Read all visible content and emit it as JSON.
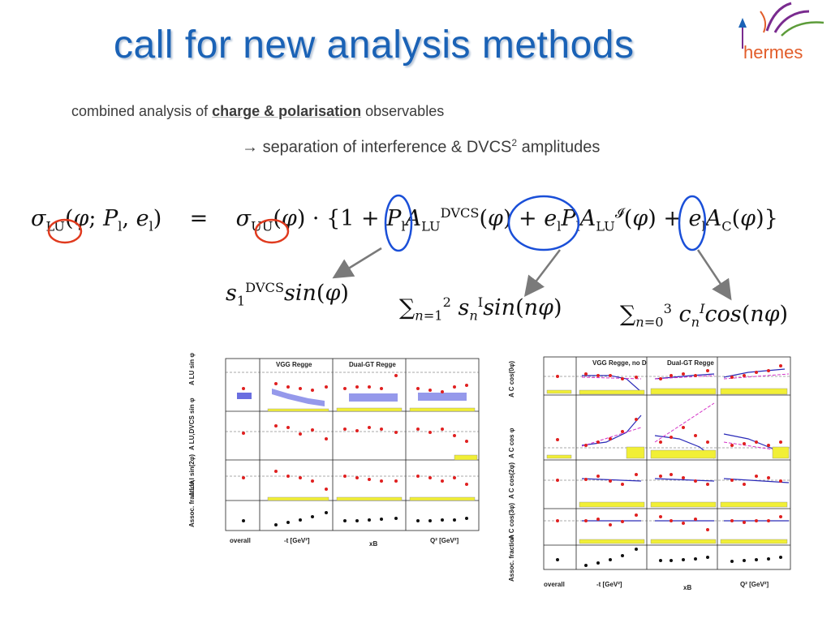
{
  "slide": {
    "title": "call for new analysis methods",
    "logo_text": "hermes",
    "line1": {
      "prefix": "combined analysis of ",
      "highlight": "charge & polarisation",
      "suffix": " observables"
    },
    "line2": {
      "arrow": "→",
      "text": "separation of interference & DVCS",
      "sup": "2",
      "suffix": " amplitudes"
    }
  },
  "equation": {
    "lhs": "σLU(φ; Pl, el)",
    "eq": "=",
    "rhs": "σUU(φ) · {1 + Pl ALU^DVCS(φ) + el Pl ALU^I(φ) + el AC(φ)}"
  },
  "fourier_terms": {
    "dvcs": "s1 DVCS sin(φ)",
    "interference": "Σ n=1..2 s n I sin(nφ)",
    "charge": "Σ n=0..3 c n I cos(nφ)"
  },
  "left_figure": {
    "legend": [
      "VGG Regge",
      "Dual-GT Regge"
    ],
    "row_labels": [
      "A LU sin φ",
      "A LU,DVCS sin φ",
      "A LU,I sin(2φ)",
      "Assoc. fraction"
    ],
    "x_labels": [
      "overall",
      "-t [GeV²]",
      "xB",
      "Q² [GeV²]"
    ]
  },
  "right_figure": {
    "legend": [
      "VGG Regge, no D",
      "Dual-GT Regge"
    ],
    "row_labels": [
      "A C cos(0φ)",
      "A C cos φ",
      "A C cos(2φ)",
      "A C cos(3φ)",
      "Assoc. fraction"
    ],
    "x_labels": [
      "overall",
      "-t [GeV²]",
      "xB",
      "Q² [GeV²]"
    ]
  },
  "colors": {
    "title": "#1a62b6",
    "logo": "#e25d2a",
    "circle_red": "#e03a1e",
    "circle_blue": "#1a4fd8",
    "arrow": "#7a7a7a"
  }
}
